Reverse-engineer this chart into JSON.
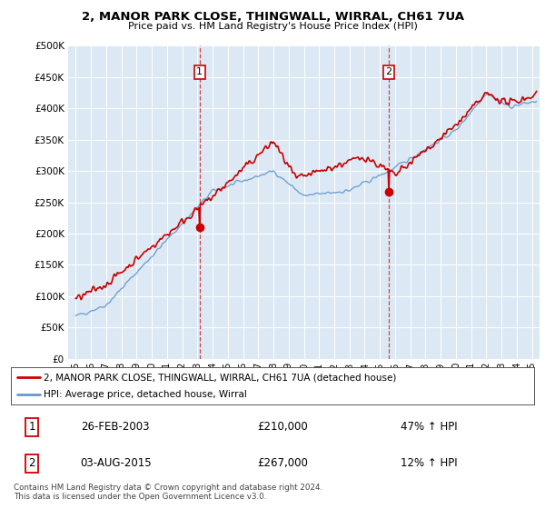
{
  "title": "2, MANOR PARK CLOSE, THINGWALL, WIRRAL, CH61 7UA",
  "subtitle": "Price paid vs. HM Land Registry's House Price Index (HPI)",
  "legend_line1": "2, MANOR PARK CLOSE, THINGWALL, WIRRAL, CH61 7UA (detached house)",
  "legend_line2": "HPI: Average price, detached house, Wirral",
  "sale1_date": "26-FEB-2003",
  "sale1_price": 210000,
  "sale1_hpi": "47% ↑ HPI",
  "sale2_date": "03-AUG-2015",
  "sale2_price": 267000,
  "sale2_hpi": "12% ↑ HPI",
  "footnote": "Contains HM Land Registry data © Crown copyright and database right 2024.\nThis data is licensed under the Open Government Licence v3.0.",
  "red_color": "#cc0000",
  "blue_color": "#6699cc",
  "plot_bg": "#dce9f5",
  "sale1_x": 2003.15,
  "sale2_x": 2015.58,
  "ylim": [
    0,
    500000
  ],
  "xlim_start": 1994.5,
  "xlim_end": 2025.5
}
